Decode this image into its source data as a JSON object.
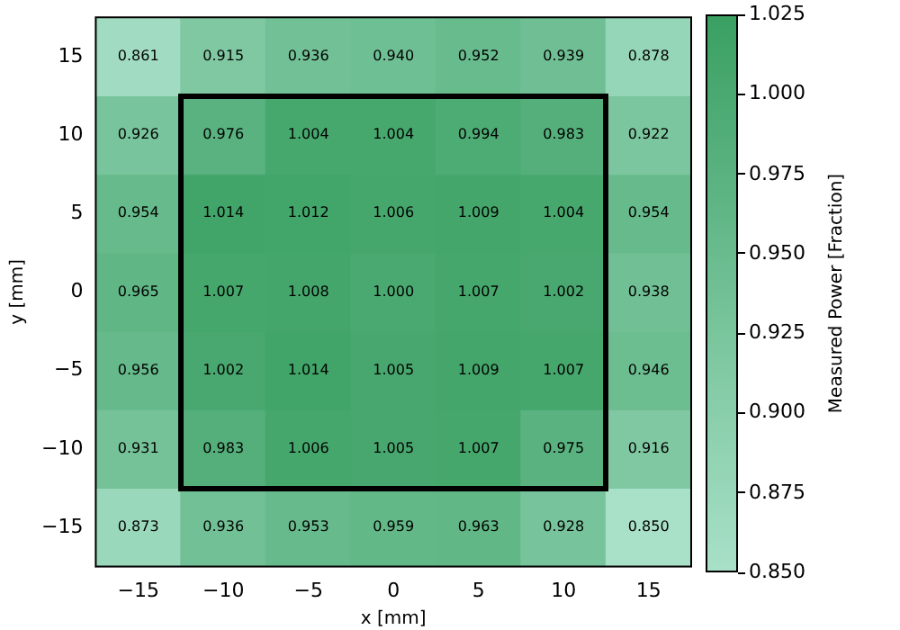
{
  "chart_data": {
    "type": "heatmap",
    "xlabel": "x [mm]",
    "ylabel": "y [mm]",
    "clabel": "Measured Power [Fraction]",
    "categories": [
      "−15",
      "−10",
      "−5",
      "0",
      "5",
      "10",
      "15"
    ],
    "y_categories": [
      "15",
      "10",
      "5",
      "0",
      "−5",
      "−10",
      "−15"
    ],
    "cells": [
      [
        0.861,
        0.915,
        0.936,
        0.94,
        0.952,
        0.939,
        0.878
      ],
      [
        0.926,
        0.976,
        1.004,
        1.004,
        0.994,
        0.983,
        0.922
      ],
      [
        0.954,
        1.014,
        1.012,
        1.006,
        1.009,
        1.004,
        0.954
      ],
      [
        0.965,
        1.007,
        1.008,
        1.0,
        1.007,
        1.002,
        0.938
      ],
      [
        0.956,
        1.002,
        1.014,
        1.005,
        1.009,
        1.007,
        0.946
      ],
      [
        0.931,
        0.983,
        1.006,
        1.005,
        1.007,
        0.975,
        0.916
      ],
      [
        0.873,
        0.936,
        0.953,
        0.959,
        0.963,
        0.928,
        0.85
      ]
    ],
    "cell_labels": [
      [
        "0.861",
        "0.915",
        "0.936",
        "0.940",
        "0.952",
        "0.939",
        "0.878"
      ],
      [
        "0.926",
        "0.976",
        "1.004",
        "1.004",
        "0.994",
        "0.983",
        "0.922"
      ],
      [
        "0.954",
        "1.014",
        "1.012",
        "1.006",
        "1.009",
        "1.004",
        "0.954"
      ],
      [
        "0.965",
        "1.007",
        "1.008",
        "1.000",
        "1.007",
        "1.002",
        "0.938"
      ],
      [
        "0.956",
        "1.002",
        "1.014",
        "1.005",
        "1.009",
        "1.007",
        "0.946"
      ],
      [
        "0.931",
        "0.983",
        "1.006",
        "1.005",
        "1.007",
        "0.975",
        "0.916"
      ],
      [
        "0.873",
        "0.936",
        "0.953",
        "0.959",
        "0.963",
        "0.928",
        "0.850"
      ]
    ],
    "clim": [
      0.85,
      1.025
    ],
    "cticks": [
      {
        "value": 0.85,
        "label": "0.850"
      },
      {
        "value": 0.875,
        "label": "0.875"
      },
      {
        "value": 0.9,
        "label": "0.900"
      },
      {
        "value": 0.925,
        "label": "0.925"
      },
      {
        "value": 0.95,
        "label": "0.950"
      },
      {
        "value": 0.975,
        "label": "0.975"
      },
      {
        "value": 1.0,
        "label": "1.000"
      },
      {
        "value": 1.025,
        "label": "1.025"
      }
    ]
  }
}
